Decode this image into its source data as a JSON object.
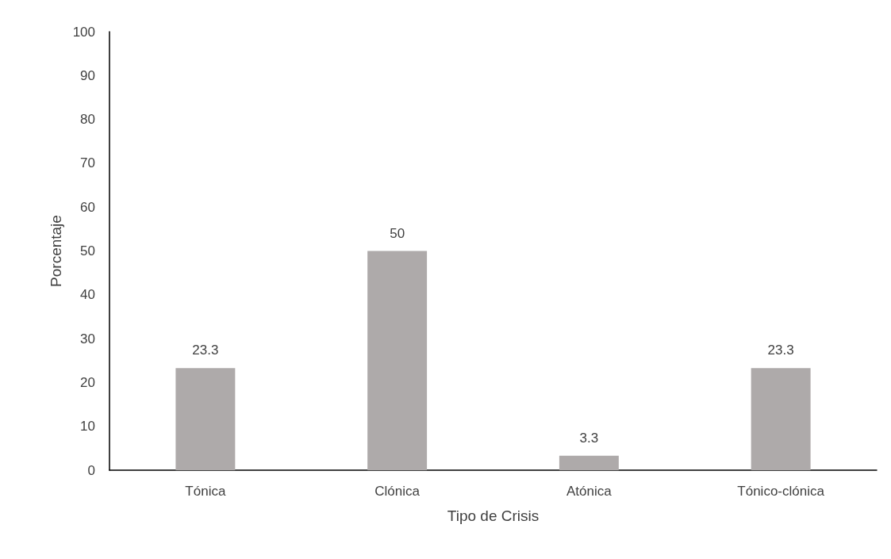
{
  "chart_data": {
    "type": "bar",
    "xlabel": "Tipo de Crisis",
    "ylabel": "Porcentaje",
    "categories": [
      "Tónica",
      "Clónica",
      "Atónica",
      "Tónico-clónica"
    ],
    "values": [
      23.3,
      50,
      3.3,
      23.3
    ],
    "color": "#aeaaaa",
    "ylim": [
      0,
      100
    ],
    "yticks": [
      0,
      10,
      20,
      30,
      40,
      50,
      60,
      70,
      80,
      90,
      100
    ],
    "grid": false,
    "data_labels": true
  }
}
